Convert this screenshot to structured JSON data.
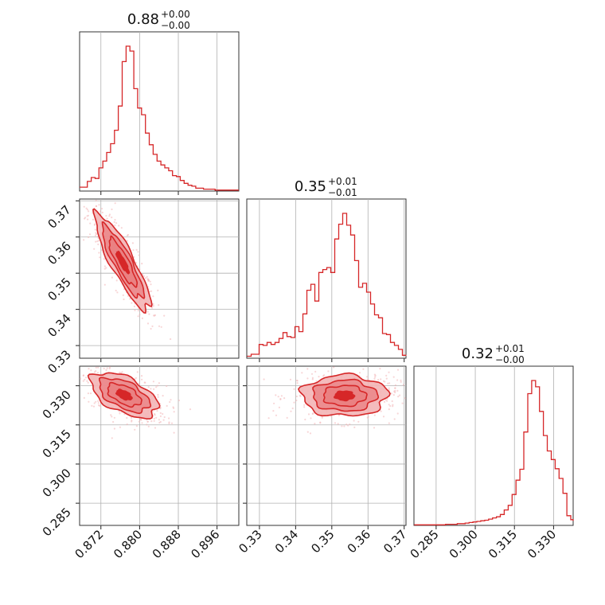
{
  "colors": {
    "main": "#d62728",
    "fill_light": "#f3b5b6",
    "fill_mid": "#ea7f81",
    "fill_dark": "#d62728",
    "grid": "#b0b0b0"
  },
  "chart_data": {
    "type": "corner",
    "parameters": [
      {
        "title_value": "0.88",
        "title_plus": "+0.00",
        "title_minus": "−0.00",
        "range": [
          0.8676,
          0.9005
        ],
        "ticks": [
          "0.872",
          "0.880",
          "0.888",
          "0.896"
        ]
      },
      {
        "title_value": "0.35",
        "title_plus": "+0.01",
        "title_minus": "−0.01",
        "range": [
          0.3265,
          0.3705
        ],
        "ticks": [
          "0.33",
          "0.34",
          "0.35",
          "0.36",
          "0.37"
        ]
      },
      {
        "title_value": "0.32",
        "title_plus": "+0.01",
        "title_minus": "−0.00",
        "range": [
          0.2765,
          0.3375
        ],
        "ticks": [
          "0.285",
          "0.300",
          "0.315",
          "0.330"
        ]
      }
    ],
    "histograms": [
      {
        "param": 0,
        "x": [
          0.8676,
          0.8684,
          0.8692,
          0.87,
          0.8708,
          0.8716,
          0.8724,
          0.8732,
          0.874,
          0.8748,
          0.8756,
          0.8764,
          0.8772,
          0.878,
          0.8788,
          0.8796,
          0.8804,
          0.8812,
          0.882,
          0.8828,
          0.8836,
          0.8844,
          0.8852,
          0.886,
          0.8868,
          0.8876,
          0.8884,
          0.8892,
          0.89,
          0.8908,
          0.8916,
          0.8924,
          0.8932,
          0.894,
          0.8948,
          0.8956,
          0.8964,
          0.8972,
          0.898,
          0.8988,
          0.8996,
          0.9004
        ],
        "counts": [
          4,
          4,
          10,
          14,
          13,
          24,
          31,
          40,
          49,
          63,
          88,
          134,
          150,
          145,
          106,
          86,
          79,
          60,
          48,
          38,
          31,
          27,
          24,
          21,
          16,
          15,
          11,
          8,
          6,
          5,
          3,
          3,
          2,
          2,
          2,
          1,
          1,
          1,
          1,
          1,
          1,
          1
        ]
      },
      {
        "param": 1,
        "x": [
          0.3266,
          0.3277,
          0.3288,
          0.3299,
          0.331,
          0.3321,
          0.3332,
          0.3343,
          0.3354,
          0.3365,
          0.3376,
          0.3387,
          0.3398,
          0.3409,
          0.342,
          0.3431,
          0.3442,
          0.3453,
          0.3464,
          0.3475,
          0.3486,
          0.3497,
          0.3508,
          0.3519,
          0.353,
          0.3541,
          0.3552,
          0.3563,
          0.3574,
          0.3585,
          0.3596,
          0.3607,
          0.3618,
          0.3629,
          0.364,
          0.3651,
          0.3662,
          0.3673,
          0.3684,
          0.3695,
          0.3706
        ],
        "counts": [
          2,
          4,
          4,
          14,
          13,
          16,
          14,
          16,
          20,
          26,
          22,
          21,
          32,
          27,
          45,
          69,
          75,
          58,
          87,
          90,
          92,
          87,
          121,
          136,
          147,
          135,
          125,
          99,
          72,
          76,
          67,
          55,
          44,
          41,
          25,
          24,
          16,
          13,
          9,
          3,
          3
        ]
      },
      {
        "param": 2,
        "x": [
          0.2766,
          0.2781,
          0.2796,
          0.2811,
          0.2826,
          0.2841,
          0.2856,
          0.2871,
          0.2886,
          0.2901,
          0.2916,
          0.2931,
          0.2946,
          0.2961,
          0.2976,
          0.2991,
          0.3006,
          0.3021,
          0.3036,
          0.3051,
          0.3066,
          0.3081,
          0.3096,
          0.3111,
          0.3126,
          0.3141,
          0.3156,
          0.3171,
          0.3186,
          0.3201,
          0.3216,
          0.3231,
          0.3246,
          0.3261,
          0.3276,
          0.3291,
          0.3306,
          0.3321,
          0.3336,
          0.3351,
          0.3366,
          0.3375
        ],
        "counts": [
          1,
          1,
          1,
          1,
          1,
          1,
          1,
          1,
          2,
          2,
          2,
          3,
          3,
          4,
          5,
          6,
          7,
          8,
          9,
          11,
          13,
          15,
          19,
          27,
          35,
          54,
          79,
          98,
          163,
          230,
          253,
          242,
          199,
          157,
          130,
          115,
          99,
          82,
          56,
          17,
          10,
          8
        ]
      }
    ],
    "correlations": [
      {
        "x_param": 0,
        "y_param": 1,
        "center": [
          0.8765,
          0.353
        ],
        "cov": [
          [
            8.1e-06,
            -1.65e-05
          ],
          [
            -1.65e-05,
            4.4e-05
          ]
        ]
      },
      {
        "x_param": 0,
        "y_param": 2,
        "center": [
          0.8768,
          0.3265
        ],
        "cov": [
          [
            1.2e-05,
            -8e-06
          ],
          [
            -8e-06,
            1.85e-05
          ]
        ]
      },
      {
        "x_param": 1,
        "y_param": 2,
        "center": [
          0.3535,
          0.3262
        ],
        "cov": [
          [
            3.5e-05,
            0.0
          ],
          [
            0.0,
            1.55e-05
          ]
        ]
      }
    ]
  }
}
